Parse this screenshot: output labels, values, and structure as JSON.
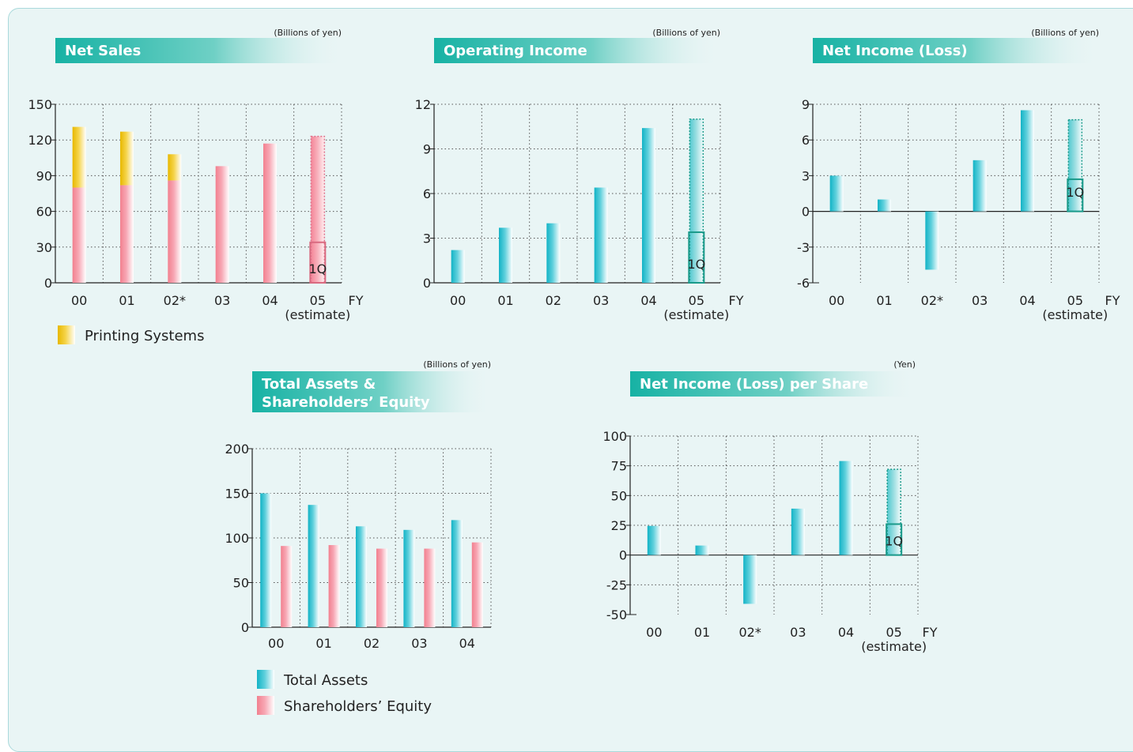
{
  "colors": {
    "background": "#e9f5f5",
    "panel_border": "#a9d9db",
    "title_band": "#1ab3a6",
    "title_text": "#ffffff",
    "cyan": "#1ab9c8",
    "pink": "#f58fa0",
    "yellow": "#f0c000",
    "grid": "#444444",
    "estimate_outline": "#1a9a8a",
    "estimate_outline_pink": "#d96a80"
  },
  "legend": {
    "printing_systems": "Printing Systems",
    "total_assets": "Total Assets",
    "shareholders_equity": "Shareholders’ Equity"
  },
  "chart_data": [
    {
      "id": "net-sales",
      "type": "bar",
      "stacked": true,
      "title": [
        "Net Sales"
      ],
      "unit": "(Billions of yen)",
      "categories": [
        "00",
        "01",
        "02*",
        "03",
        "04",
        "05"
      ],
      "category_note": "(estimate)",
      "axis_end_label": "FY",
      "ylim": [
        0,
        150
      ],
      "yticks": [
        0,
        30,
        60,
        90,
        120,
        150
      ],
      "grid": true,
      "series": [
        {
          "name": "",
          "color": "pink",
          "values": [
            80,
            82,
            86,
            98,
            117,
            123
          ]
        },
        {
          "name": "Printing Systems",
          "color": "yellow",
          "values": [
            51,
            45,
            22,
            0,
            0,
            0
          ]
        }
      ],
      "estimate_index": 5,
      "quarter_label": "1Q",
      "quarter_value": 34,
      "quarter_outline": "estimate_outline_pink"
    },
    {
      "id": "operating-income",
      "type": "bar",
      "title": [
        "Operating Income"
      ],
      "unit": "(Billions of yen)",
      "categories": [
        "00",
        "01",
        "02",
        "03",
        "04",
        "05"
      ],
      "category_note": "(estimate)",
      "axis_end_label": "FY",
      "ylim": [
        0,
        12
      ],
      "yticks": [
        0,
        3,
        6,
        9,
        12
      ],
      "grid": true,
      "series": [
        {
          "name": "",
          "color": "cyan",
          "values": [
            2.2,
            3.7,
            4.0,
            6.4,
            10.4,
            11.0
          ]
        }
      ],
      "estimate_index": 5,
      "quarter_label": "1Q",
      "quarter_value": 3.4,
      "quarter_outline": "estimate_outline"
    },
    {
      "id": "net-income",
      "type": "bar",
      "title": [
        "Net Income (Loss)"
      ],
      "unit": "(Billions of yen)",
      "categories": [
        "00",
        "01",
        "02*",
        "03",
        "04",
        "05"
      ],
      "category_note": "(estimate)",
      "axis_end_label": "FY",
      "ylim": [
        -6,
        9
      ],
      "yticks": [
        -6,
        -3,
        0,
        3,
        6,
        9
      ],
      "grid": true,
      "series": [
        {
          "name": "",
          "color": "cyan",
          "values": [
            3.0,
            1.0,
            -4.9,
            4.3,
            8.5,
            7.7
          ]
        }
      ],
      "estimate_index": 5,
      "quarter_label": "1Q",
      "quarter_value": 2.7,
      "quarter_outline": "estimate_outline"
    },
    {
      "id": "total-assets",
      "type": "bar",
      "title": [
        "Total Assets &",
        "Shareholders’ Equity"
      ],
      "unit": "(Billions of yen)",
      "categories": [
        "00",
        "01",
        "02",
        "03",
        "04"
      ],
      "category_note": "",
      "axis_end_label": "",
      "ylim": [
        0,
        200
      ],
      "yticks": [
        0,
        50,
        100,
        150,
        200
      ],
      "grid": true,
      "series": [
        {
          "name": "Total Assets",
          "color": "cyan",
          "values": [
            150,
            137,
            113,
            109,
            120
          ]
        },
        {
          "name": "Shareholders’ Equity",
          "color": "pink",
          "values": [
            91,
            92,
            88,
            88,
            95
          ]
        }
      ]
    },
    {
      "id": "eps",
      "type": "bar",
      "title": [
        "Net Income (Loss) per Share"
      ],
      "unit": "(Yen)",
      "categories": [
        "00",
        "01",
        "02*",
        "03",
        "04",
        "05"
      ],
      "category_note": "(estimate)",
      "axis_end_label": "FY",
      "ylim": [
        -50,
        100
      ],
      "yticks": [
        -50,
        -25,
        0,
        25,
        50,
        75,
        100
      ],
      "grid": true,
      "series": [
        {
          "name": "",
          "color": "cyan",
          "values": [
            24.5,
            8,
            -41,
            39,
            79,
            72
          ]
        }
      ],
      "estimate_index": 5,
      "quarter_label": "1Q",
      "quarter_value": 26,
      "quarter_outline": "estimate_outline"
    }
  ]
}
